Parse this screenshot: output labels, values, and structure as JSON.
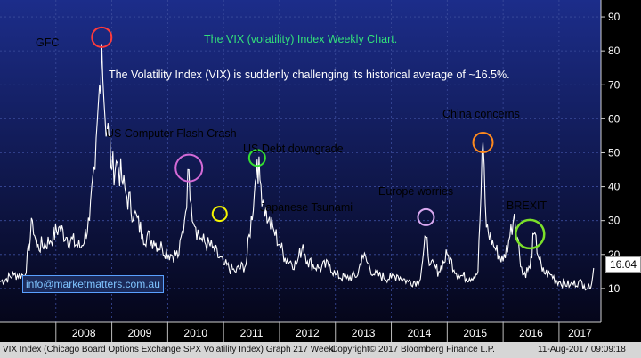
{
  "chart_data": {
    "type": "line",
    "title": "The VIX (volatility) Index Weekly Chart.",
    "subtitle": "The Volatility Index (VIX) is suddenly challenging its historical average of ~16.5%.",
    "x_range": [
      2007.0,
      2017.75
    ],
    "ylim": [
      0,
      95
    ],
    "yticks": [
      10,
      20,
      30,
      40,
      50,
      60,
      70,
      80,
      90
    ],
    "xlabels": [
      "2008",
      "2009",
      "2010",
      "2011",
      "2012",
      "2013",
      "2014",
      "2015",
      "2016",
      "2017"
    ],
    "last_value": "16.04",
    "series": [
      {
        "x": [
          2007.0,
          2007.25,
          2007.45,
          2007.58,
          2007.66,
          2007.9,
          2008.05,
          2008.2,
          2008.45,
          2008.6,
          2008.7,
          2008.78,
          2008.82,
          2008.88,
          2008.95,
          2009.0,
          2009.1,
          2009.18,
          2009.25,
          2009.4,
          2009.55,
          2009.75,
          2009.9,
          2010.05,
          2010.2,
          2010.3,
          2010.38,
          2010.42,
          2010.5,
          2010.62,
          2010.8,
          2011.0,
          2011.2,
          2011.4,
          2011.55,
          2011.6,
          2011.65,
          2011.72,
          2011.8,
          2011.9,
          2012.0,
          2012.1,
          2012.3,
          2012.42,
          2012.5,
          2012.7,
          2012.9,
          2013.0,
          2013.2,
          2013.4,
          2013.48,
          2013.7,
          2014.0,
          2014.1,
          2014.3,
          2014.5,
          2014.62,
          2014.7,
          2014.85,
          2015.0,
          2015.2,
          2015.4,
          2015.55,
          2015.64,
          2015.7,
          2015.85,
          2016.0,
          2016.1,
          2016.2,
          2016.35,
          2016.48,
          2016.55,
          2016.7,
          2016.85,
          2017.0,
          2017.2,
          2017.35,
          2017.45,
          2017.55,
          2017.62
        ],
        "y": [
          12,
          14,
          14,
          30,
          22,
          24,
          28,
          25,
          22,
          30,
          45,
          70,
          82,
          60,
          55,
          45,
          47,
          42,
          38,
          32,
          26,
          24,
          22,
          20,
          20,
          30,
          45,
          35,
          28,
          24,
          22,
          17,
          15,
          17,
          38,
          48,
          42,
          35,
          30,
          27,
          23,
          19,
          17,
          23,
          18,
          16,
          17,
          14,
          13,
          14,
          20,
          14,
          13,
          14,
          12,
          12,
          25,
          17,
          15,
          20,
          14,
          13,
          15,
          53,
          28,
          22,
          18,
          24,
          32,
          14,
          16,
          26,
          15,
          14,
          12,
          11,
          12,
          11,
          10,
          16
        ]
      }
    ],
    "annotations": [
      {
        "label": "GFC",
        "color": "#ff3b3b"
      },
      {
        "label": "US Computer Flash Crash",
        "color": "#d36ad6"
      },
      {
        "label": "US Debt downgrade",
        "color": "#35e030"
      },
      {
        "label": "Japanese Tsunami",
        "color": "#f5f500"
      },
      {
        "label": "Europe worries",
        "color": "#d9a8f0"
      },
      {
        "label": "China concerns",
        "color": "#ff8a1e"
      },
      {
        "label": "BREXIT",
        "color": "#7be02a"
      }
    ]
  },
  "watermark": "info@marketmatters.com.au",
  "footer": {
    "left": "VIX Index (Chicago Board Options Exchange SPX Volatility Index) Graph 217  Weekl",
    "center": "Copyright© 2017 Bloomberg Finance L.P.",
    "right": "11-Aug-2017 09:09:18"
  }
}
